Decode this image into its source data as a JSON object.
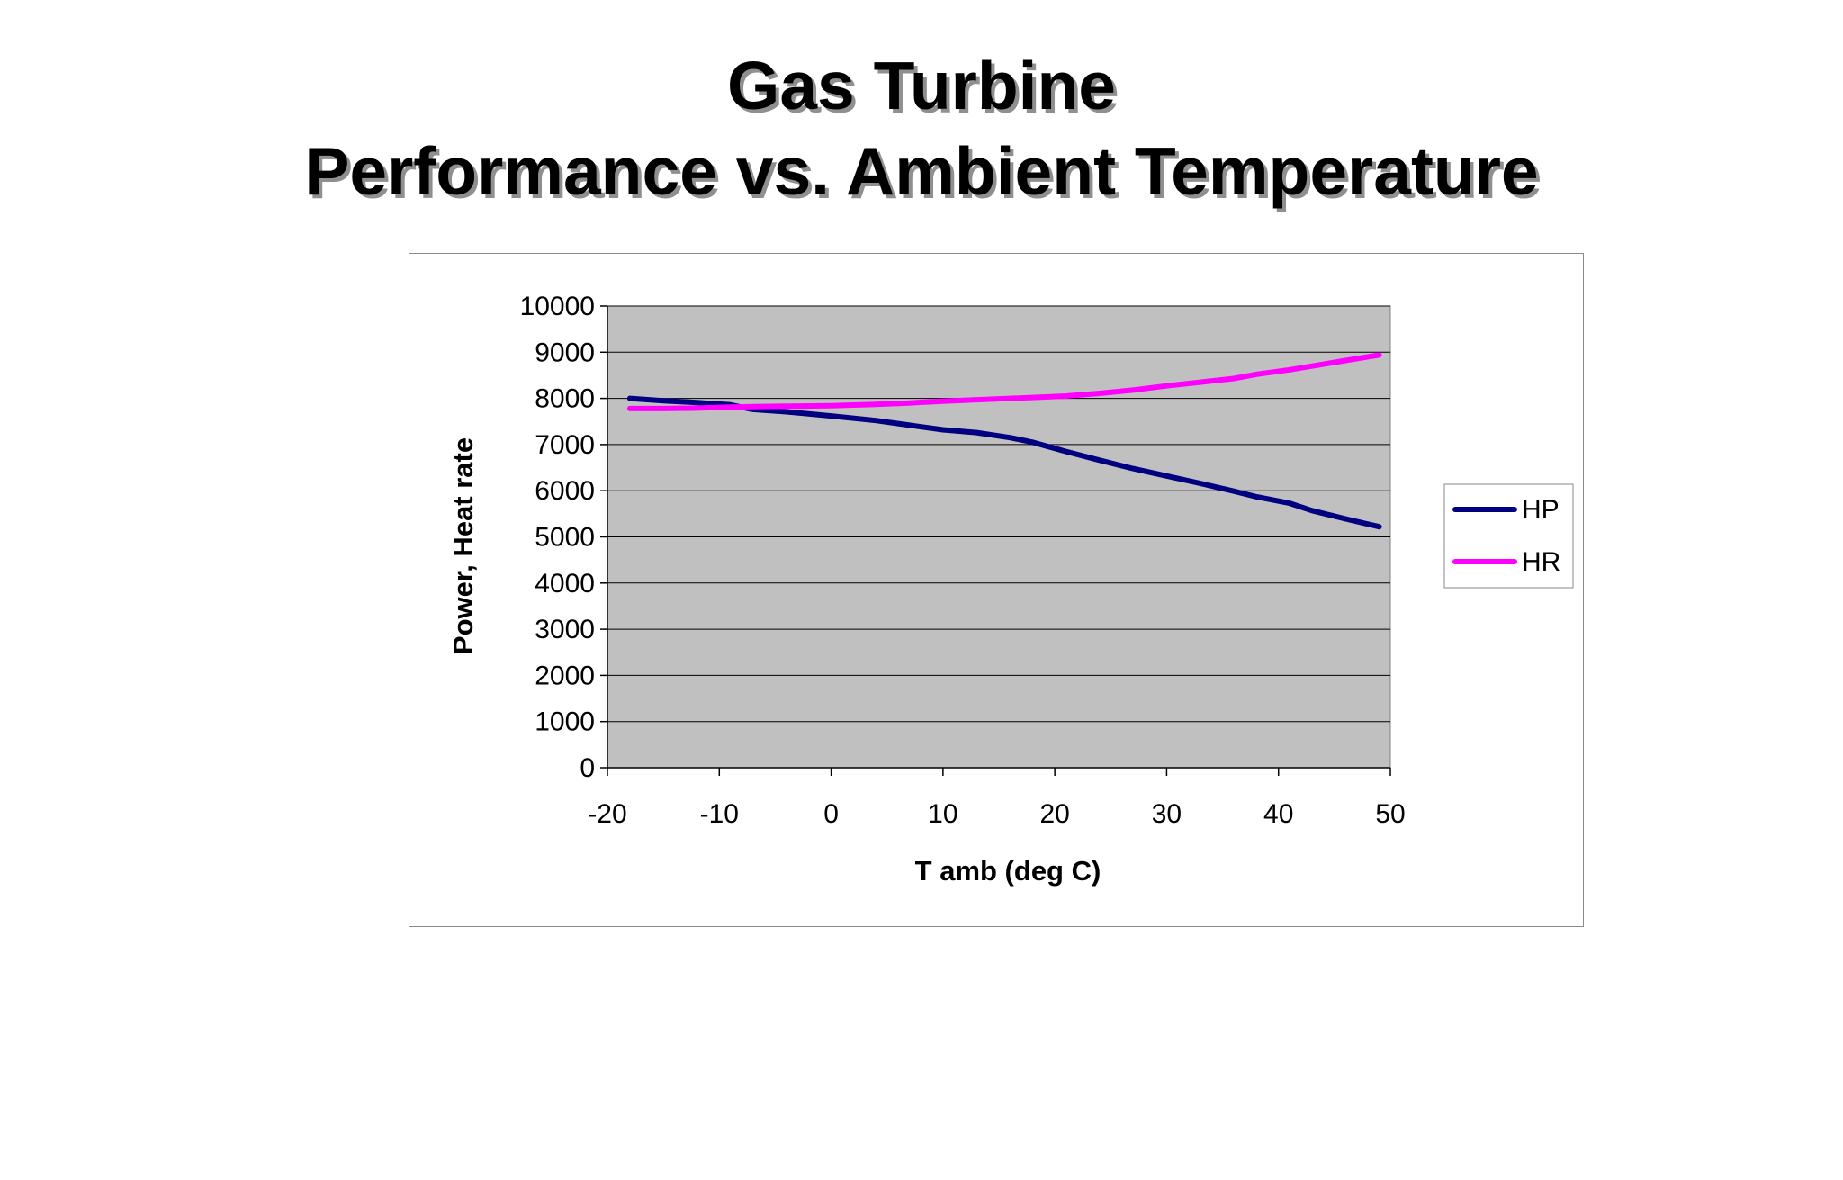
{
  "slide": {
    "title_line_1": "Gas Turbine",
    "title_line_2": "Performance vs. Ambient Temperature"
  },
  "chart_data": {
    "type": "line",
    "title": "",
    "xlabel": "T amb (deg C)",
    "ylabel": "Power, Heat rate",
    "xlim": [
      -20,
      50
    ],
    "ylim": [
      0,
      10000
    ],
    "xticks": [
      -20,
      -10,
      0,
      10,
      20,
      30,
      40,
      50
    ],
    "yticks": [
      0,
      1000,
      2000,
      3000,
      4000,
      5000,
      6000,
      7000,
      8000,
      9000,
      10000
    ],
    "grid": true,
    "plot_background": "#c0c0c0",
    "legend_position": "right",
    "series": [
      {
        "name": "HP",
        "color": "#000080",
        "x": [
          -18,
          -15,
          -12,
          -9,
          -7,
          -4,
          0,
          4,
          7,
          10,
          13,
          16,
          18,
          21,
          24,
          27,
          30,
          33,
          36,
          38,
          41,
          43,
          46,
          49
        ],
        "y": [
          8000,
          7950,
          7910,
          7860,
          7760,
          7710,
          7620,
          7520,
          7420,
          7320,
          7260,
          7150,
          7050,
          6850,
          6660,
          6480,
          6320,
          6160,
          5990,
          5870,
          5730,
          5570,
          5390,
          5220
        ]
      },
      {
        "name": "HR",
        "color": "#ff00ff",
        "x": [
          -18,
          -15,
          -12,
          -9,
          -7,
          -4,
          0,
          4,
          7,
          10,
          13,
          16,
          18,
          21,
          24,
          27,
          30,
          33,
          36,
          38,
          41,
          43,
          46,
          49
        ],
        "y": [
          7780,
          7780,
          7790,
          7810,
          7820,
          7830,
          7840,
          7870,
          7900,
          7940,
          7970,
          8000,
          8020,
          8050,
          8110,
          8180,
          8270,
          8350,
          8430,
          8520,
          8620,
          8700,
          8820,
          8940
        ]
      }
    ]
  }
}
